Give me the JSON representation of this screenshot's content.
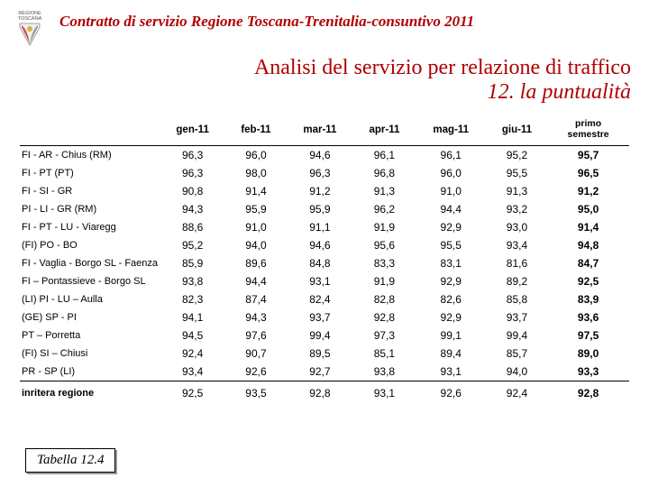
{
  "header": {
    "org_top": "REGIONE",
    "org_bottom": "TOSCANA",
    "doc_title": "Contratto di servizio Regione Toscana-Trenitalia-consuntivo 2011",
    "main_title": "Analisi del servizio per relazione di traffico",
    "sub_title": "12. la puntualità"
  },
  "table": {
    "columns": [
      "gen-11",
      "feb-11",
      "mar-11",
      "apr-11",
      "mag-11",
      "giu-11"
    ],
    "last_col_top": "primo",
    "last_col_bottom": "semestre",
    "rows": [
      {
        "label": "FI - AR - Chius (RM)",
        "v": [
          "96,3",
          "96,0",
          "94,6",
          "96,1",
          "96,1",
          "95,2"
        ],
        "t": "95,7"
      },
      {
        "label": "FI - PT (PT)",
        "v": [
          "96,3",
          "98,0",
          "96,3",
          "96,8",
          "96,0",
          "95,5"
        ],
        "t": "96,5"
      },
      {
        "label": "FI - SI - GR",
        "v": [
          "90,8",
          "91,4",
          "91,2",
          "91,3",
          "91,0",
          "91,3"
        ],
        "t": "91,2"
      },
      {
        "label": "PI - LI - GR (RM)",
        "v": [
          "94,3",
          "95,9",
          "95,9",
          "96,2",
          "94,4",
          "93,2"
        ],
        "t": "95,0"
      },
      {
        "label": "FI - PT - LU - Viaregg",
        "v": [
          "88,6",
          "91,0",
          "91,1",
          "91,9",
          "92,9",
          "93,0"
        ],
        "t": "91,4"
      },
      {
        "label": "(FI) PO - BO",
        "v": [
          "95,2",
          "94,0",
          "94,6",
          "95,6",
          "95,5",
          "93,4"
        ],
        "t": "94,8"
      },
      {
        "label": "FI - Vaglia - Borgo SL - Faenza",
        "v": [
          "85,9",
          "89,6",
          "84,8",
          "83,3",
          "83,1",
          "81,6"
        ],
        "t": "84,7"
      },
      {
        "label": "FI – Pontassieve - Borgo SL",
        "v": [
          "93,8",
          "94,4",
          "93,1",
          "91,9",
          "92,9",
          "89,2"
        ],
        "t": "92,5"
      },
      {
        "label": "(LI) PI - LU – Aulla",
        "v": [
          "82,3",
          "87,4",
          "82,4",
          "82,8",
          "82,6",
          "85,8"
        ],
        "t": "83,9"
      },
      {
        "label": "(GE) SP - PI",
        "v": [
          "94,1",
          "94,3",
          "93,7",
          "92,8",
          "92,9",
          "93,7"
        ],
        "t": "93,6"
      },
      {
        "label": "PT – Porretta",
        "v": [
          "94,5",
          "97,6",
          "99,4",
          "97,3",
          "99,1",
          "99,4"
        ],
        "t": "97,5"
      },
      {
        "label": "(FI) SI – Chiusi",
        "v": [
          "92,4",
          "90,7",
          "89,5",
          "85,1",
          "89,4",
          "85,7"
        ],
        "t": "89,0"
      },
      {
        "label": "PR - SP (LI)",
        "v": [
          "93,4",
          "92,6",
          "92,7",
          "93,8",
          "93,1",
          "94,0"
        ],
        "t": "93,3"
      }
    ],
    "totals": {
      "label": "inritera regione",
      "v": [
        "92,5",
        "93,5",
        "92,8",
        "93,1",
        "92,6",
        "92,4"
      ],
      "t": "92,8"
    }
  },
  "caption": "Tabella 12.4",
  "colors": {
    "accent": "#b00000",
    "text": "#000000",
    "bg": "#ffffff"
  }
}
